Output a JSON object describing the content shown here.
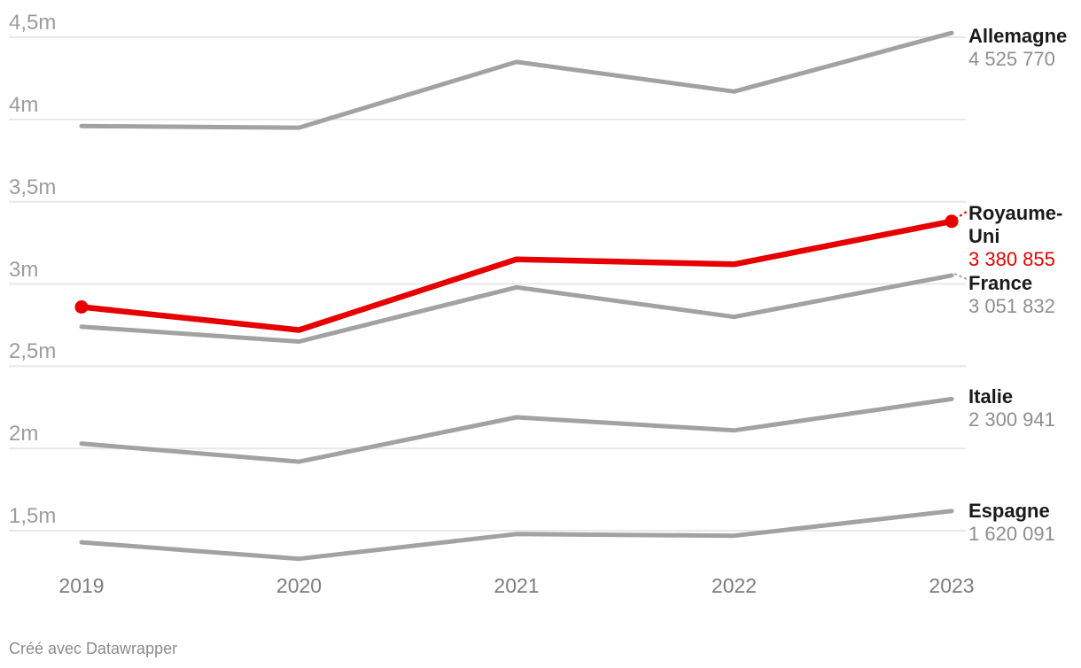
{
  "footer": {
    "text": "Créé avec Datawrapper"
  },
  "colors": {
    "background": "#ffffff",
    "highlight_red": "#e60000",
    "series_gray": "#a2a2a2",
    "gridline": "#e7e7e7",
    "x_axis_text": "#7c7c7c",
    "y_axis_text": "#9d9d9d",
    "label_name_text": "#1a1a1a",
    "label_value_gray": "#8e8e8e"
  },
  "chart_data": {
    "type": "line",
    "title": "",
    "xlabel": "",
    "ylabel": "",
    "units": "millions",
    "grid": "horizontal-only",
    "legend_position": "direct-labels-right",
    "x_tick_labels": [
      "2019",
      "2020",
      "2021",
      "2022",
      "2023"
    ],
    "y_axis": {
      "min": 1.25,
      "max": 4.5,
      "ticks": [
        {
          "value": 4.5,
          "label": "4,5m"
        },
        {
          "value": 4.0,
          "label": "4m"
        },
        {
          "value": 3.5,
          "label": "3,5m"
        },
        {
          "value": 3.0,
          "label": "3m"
        },
        {
          "value": 2.5,
          "label": "2,5m"
        },
        {
          "value": 2.0,
          "label": "2m"
        },
        {
          "value": 1.5,
          "label": "1,5m"
        }
      ]
    },
    "series": [
      {
        "name": "Allemagne",
        "values": [
          3.96,
          3.95,
          4.35,
          4.17,
          4.52577
        ],
        "end_value_label": "4 525 770",
        "color": "#a2a2a2",
        "value_color": "#8e8e8e",
        "highlight": false
      },
      {
        "name": "Royaume-Uni",
        "values": [
          2.86,
          2.72,
          3.15,
          3.12,
          3.380855
        ],
        "end_value_label": "3 380 855",
        "color": "#e60000",
        "value_color": "#e60000",
        "highlight": true
      },
      {
        "name": "France",
        "values": [
          2.74,
          2.65,
          2.98,
          2.8,
          3.051832
        ],
        "end_value_label": "3 051 832",
        "color": "#a2a2a2",
        "value_color": "#8e8e8e",
        "highlight": false
      },
      {
        "name": "Italie",
        "values": [
          2.03,
          1.92,
          2.19,
          2.11,
          2.300941
        ],
        "end_value_label": "2 300 941",
        "color": "#a2a2a2",
        "value_color": "#8e8e8e",
        "highlight": false
      },
      {
        "name": "Espagne",
        "values": [
          1.43,
          1.33,
          1.48,
          1.47,
          1.620091
        ],
        "end_value_label": "1 620 091",
        "color": "#a2a2a2",
        "value_color": "#8e8e8e",
        "highlight": false
      }
    ]
  }
}
